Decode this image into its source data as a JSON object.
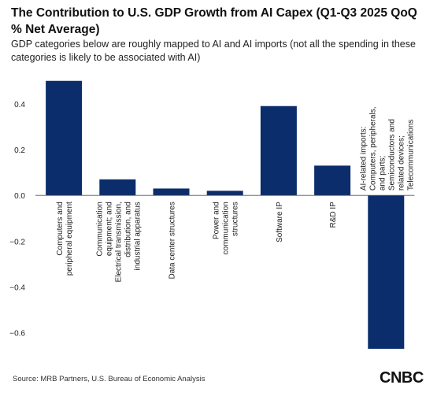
{
  "header": {
    "title": "The Contribution to U.S. GDP Growth from AI Capex (Q1-Q3 2025 QoQ % Net Average)",
    "subtitle": "GDP categories below are roughly mapped to AI and AI imports (not all the spending in these categories is likely to be associated with AI)"
  },
  "chart_data": {
    "type": "bar",
    "title": "The Contribution to U.S. GDP Growth from AI Capex (Q1-Q3 2025 QoQ % Net Average)",
    "xlabel": "",
    "ylabel": "",
    "ylim": [
      -0.68,
      0.53
    ],
    "yticks": [
      0.4,
      0.2,
      0.0,
      -0.2,
      -0.4,
      -0.6
    ],
    "ytick_labels": [
      "0.4",
      "0.2",
      "0.0",
      "−0.2",
      "−0.4",
      "−0.6"
    ],
    "grid": false,
    "legend": "none",
    "categories": [
      [
        "Computers and",
        "peripheral equipment"
      ],
      [
        "Communication",
        "equipment; and",
        "Electrical transmission,",
        "distribution, and",
        "industrial apparatus"
      ],
      [
        "Data center structures"
      ],
      [
        "Power and",
        "communication",
        "structures"
      ],
      [
        "Software IP"
      ],
      [
        "R&D IP"
      ],
      [
        "AI-related imports:",
        "Computers, peripherals,",
        "and parts;",
        "Semiconductors and",
        "related devices;",
        "Telecommunications"
      ]
    ],
    "values": [
      0.5,
      0.07,
      0.03,
      0.02,
      0.39,
      0.13,
      -0.67
    ],
    "bar_color": "#0b2d6b"
  },
  "footer": {
    "source": "Source: MRB Partners, U.S. Bureau of Economic Analysis"
  },
  "logo": {
    "text": "CNBC",
    "icon": "cnbc-logo-icon",
    "accent": "#1d4f9f"
  }
}
